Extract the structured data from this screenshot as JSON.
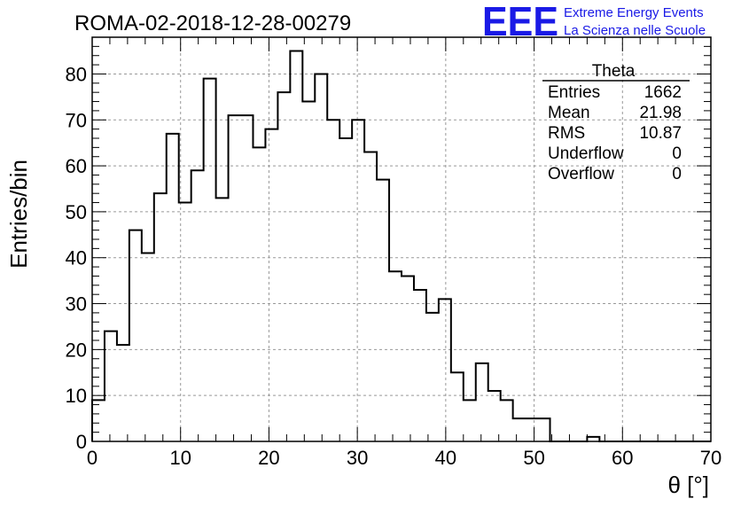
{
  "title": "ROMA-02-2018-12-28-00279",
  "logo": {
    "mark": "EEE",
    "line1": "Extreme Energy Events",
    "line2": "La Scienza nelle Scuole",
    "color": "#1a1ae6"
  },
  "stats": {
    "name": "Theta",
    "rows": [
      {
        "label": "Entries",
        "value": "1662"
      },
      {
        "label": "Mean",
        "value": "21.98"
      },
      {
        "label": "RMS",
        "value": "10.87"
      },
      {
        "label": "Underflow",
        "value": "0"
      },
      {
        "label": "Overflow",
        "value": "0"
      }
    ]
  },
  "chart_data": {
    "type": "bar",
    "histogram": true,
    "title": "ROMA-02-2018-12-28-00279",
    "xlabel": "θ [°]",
    "ylabel": "Entries/bin",
    "xlim": [
      0,
      70
    ],
    "ylim": [
      0,
      88
    ],
    "bin_width": 1.4,
    "x_ticks": [
      0,
      10,
      20,
      30,
      40,
      50,
      60,
      70
    ],
    "y_ticks": [
      0,
      10,
      20,
      30,
      40,
      50,
      60,
      70,
      80
    ],
    "grid": true,
    "values": [
      9,
      24,
      21,
      46,
      41,
      54,
      67,
      52,
      59,
      79,
      53,
      71,
      71,
      64,
      68,
      76,
      85,
      74,
      80,
      70,
      66,
      70,
      63,
      57,
      37,
      36,
      33,
      28,
      31,
      15,
      9,
      17,
      11,
      9,
      5,
      5,
      5,
      0,
      0,
      0,
      1,
      0,
      0,
      0,
      0,
      0,
      0,
      0,
      0,
      0
    ]
  }
}
